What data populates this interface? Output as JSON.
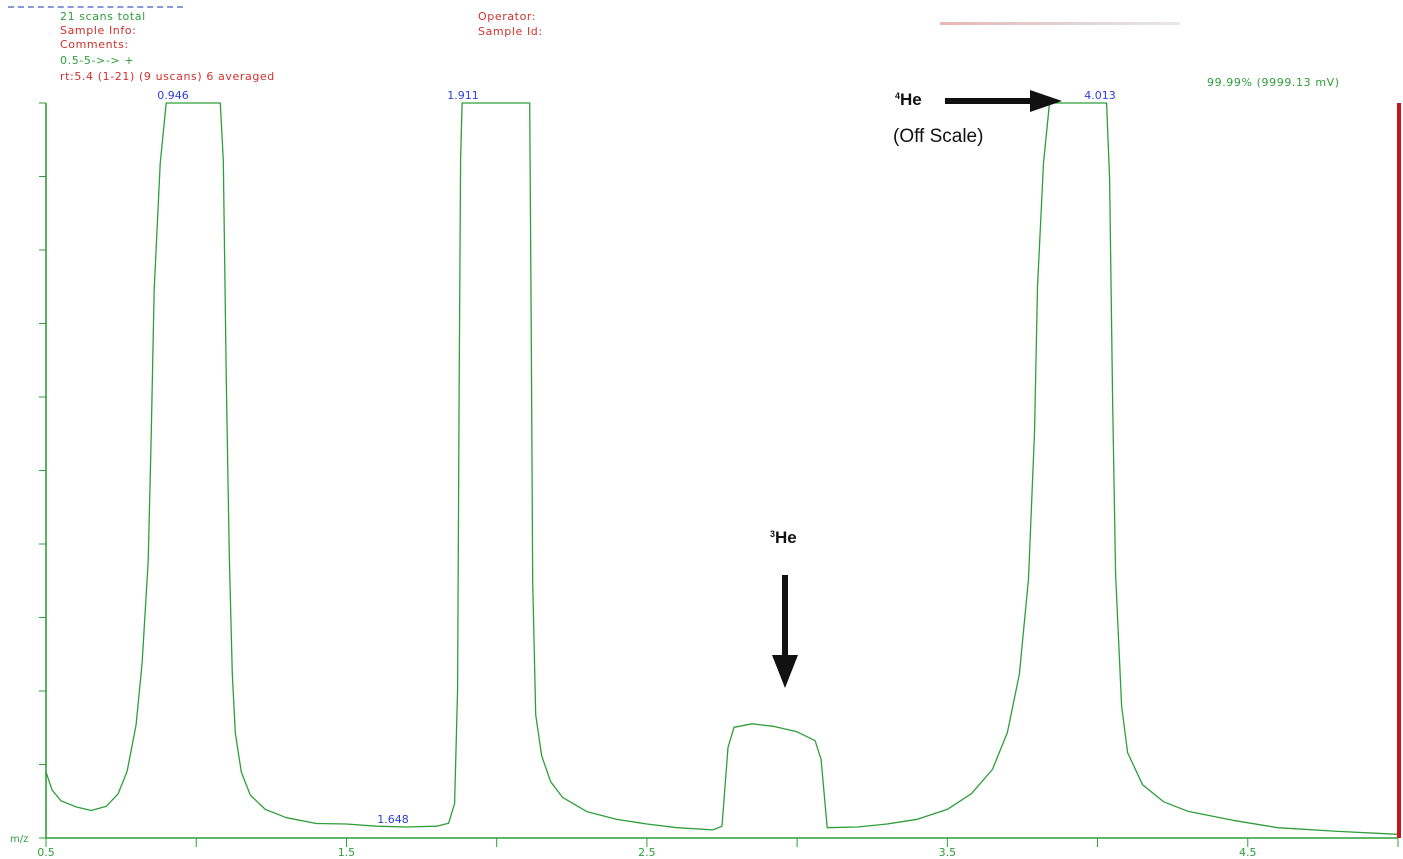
{
  "header": {
    "scans_total": "21 scans total",
    "sample_info": "Sample Info:",
    "comments": "Comments:",
    "scan_range": "0.5-5->->  +",
    "scan_status": "rt:5.4 (1-21) (9 uscans) 6 averaged",
    "operator": "Operator:",
    "sample_id": "Sample Id:",
    "full_scale": "99.99% (9999.13 mV)"
  },
  "annotations": {
    "he4_mass": "4",
    "he4_symbol": "He",
    "he4_note": "(Off Scale)",
    "he3_mass": "3",
    "he3_symbol": "He"
  },
  "colors": {
    "trace": "#2f9e3a",
    "axis": "#2f9e3a",
    "peak_label": "#2a3fd6",
    "status_text": "#d0312d",
    "cursor": "#c8141e",
    "arrow": "#111111"
  },
  "chart_data": {
    "type": "line",
    "xlabel": "m/z",
    "xlim": [
      0.5,
      5.0
    ],
    "ylim": [
      0,
      100
    ],
    "x_ticks": [
      0.5,
      1.0,
      1.5,
      2.0,
      2.5,
      3.0,
      3.5,
      4.0,
      4.5,
      5.0
    ],
    "x_tick_labels": [
      "0.5",
      "",
      "1.5",
      "",
      "2.5",
      "",
      "3.5",
      "",
      "4.5",
      ""
    ],
    "y_tick_count": 10,
    "grid": false,
    "peak_labels": [
      {
        "x": 0.946,
        "y": 100,
        "text": "0.946"
      },
      {
        "x": 1.911,
        "y": 100,
        "text": "1.911"
      },
      {
        "x": 1.648,
        "y": 1.5,
        "text": "1.648"
      },
      {
        "x": 4.013,
        "y": 100,
        "text": "4.013"
      }
    ],
    "series": [
      {
        "points": [
          [
            0.5,
            9.0
          ],
          [
            0.52,
            6.4
          ],
          [
            0.55,
            4.8
          ],
          [
            0.6,
            3.9
          ],
          [
            0.65,
            3.4
          ],
          [
            0.7,
            4.0
          ],
          [
            0.74,
            5.8
          ],
          [
            0.77,
            9.0
          ],
          [
            0.8,
            15.5
          ],
          [
            0.82,
            24.0
          ],
          [
            0.84,
            38.0
          ],
          [
            0.85,
            55.0
          ],
          [
            0.86,
            75.0
          ],
          [
            0.88,
            92.0
          ],
          [
            0.9,
            100.0
          ],
          [
            1.08,
            100.0
          ],
          [
            1.09,
            92.0
          ],
          [
            1.1,
            62.0
          ],
          [
            1.11,
            38.0
          ],
          [
            1.12,
            22.0
          ],
          [
            1.13,
            14.0
          ],
          [
            1.15,
            8.8
          ],
          [
            1.18,
            5.8
          ],
          [
            1.23,
            4.0
          ],
          [
            1.3,
            3.0
          ],
          [
            1.4,
            2.3
          ],
          [
            1.5,
            1.9
          ],
          [
            1.6,
            1.6
          ],
          [
            1.7,
            1.5
          ],
          [
            1.8,
            1.6
          ],
          [
            1.84,
            2.0
          ],
          [
            1.86,
            4.5
          ],
          [
            1.87,
            20.0
          ],
          [
            1.875,
            60.0
          ],
          [
            1.88,
            92.0
          ],
          [
            1.885,
            100.0
          ],
          [
            2.11,
            100.0
          ],
          [
            2.115,
            70.0
          ],
          [
            2.12,
            35.0
          ],
          [
            2.13,
            17.0
          ],
          [
            2.15,
            11.5
          ],
          [
            2.18,
            8.0
          ],
          [
            2.22,
            5.8
          ],
          [
            2.3,
            3.8
          ],
          [
            2.4,
            2.6
          ],
          [
            2.5,
            1.9
          ],
          [
            2.6,
            1.4
          ],
          [
            2.72,
            1.1
          ],
          [
            2.75,
            1.6
          ],
          [
            2.77,
            12.0
          ],
          [
            2.79,
            14.8
          ],
          [
            2.85,
            15.4
          ],
          [
            2.92,
            15.2
          ],
          [
            3.0,
            14.6
          ],
          [
            3.06,
            13.5
          ],
          [
            3.08,
            11.0
          ],
          [
            3.1,
            1.4
          ],
          [
            3.2,
            1.5
          ],
          [
            3.3,
            1.9
          ],
          [
            3.4,
            2.6
          ],
          [
            3.5,
            3.8
          ],
          [
            3.58,
            5.8
          ],
          [
            3.65,
            9.0
          ],
          [
            3.7,
            14.0
          ],
          [
            3.74,
            22.0
          ],
          [
            3.77,
            35.0
          ],
          [
            3.79,
            55.0
          ],
          [
            3.8,
            75.0
          ],
          [
            3.82,
            92.0
          ],
          [
            3.84,
            100.0
          ],
          [
            4.03,
            100.0
          ],
          [
            4.04,
            90.0
          ],
          [
            4.05,
            60.0
          ],
          [
            4.06,
            36.0
          ],
          [
            4.08,
            18.0
          ],
          [
            4.1,
            11.5
          ],
          [
            4.15,
            7.0
          ],
          [
            4.22,
            4.6
          ],
          [
            4.3,
            3.3
          ],
          [
            4.45,
            2.1
          ],
          [
            4.6,
            1.4
          ],
          [
            4.8,
            0.9
          ],
          [
            5.0,
            0.5
          ]
        ]
      }
    ]
  }
}
